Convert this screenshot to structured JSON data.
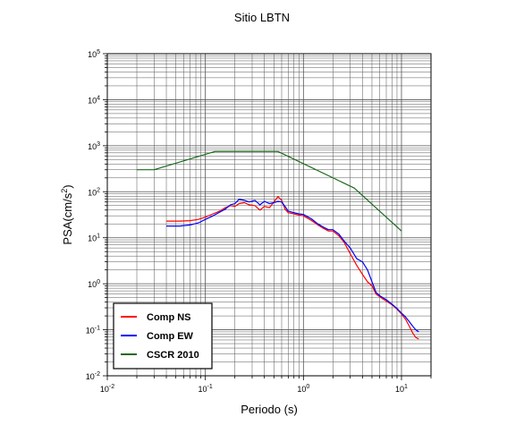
{
  "chart_data": {
    "type": "line",
    "title": "Sitio LBTN",
    "xlabel": "Periodo (s)",
    "ylabel_base": "PSA(cm/s",
    "ylabel_sup": "2",
    "ylabel_close": ")",
    "xscale": "log",
    "yscale": "log",
    "xlim": [
      0.01,
      20
    ],
    "ylim": [
      0.01,
      100000
    ],
    "grid": true,
    "legend_position": "bottom-left",
    "x_tick_labels": [
      {
        "base": "10",
        "exp": "-2"
      },
      {
        "base": "10",
        "exp": "-1"
      },
      {
        "base": "10",
        "exp": "0"
      },
      {
        "base": "10",
        "exp": "1"
      }
    ],
    "y_tick_labels": [
      {
        "base": "10",
        "exp": "-2"
      },
      {
        "base": "10",
        "exp": "-1"
      },
      {
        "base": "10",
        "exp": "0"
      },
      {
        "base": "10",
        "exp": "1"
      },
      {
        "base": "10",
        "exp": "2"
      },
      {
        "base": "10",
        "exp": "3"
      },
      {
        "base": "10",
        "exp": "4"
      },
      {
        "base": "10",
        "exp": "5"
      }
    ],
    "series": [
      {
        "name": "Comp NS",
        "color": "#ff0000",
        "points": [
          [
            0.04,
            23
          ],
          [
            0.055,
            23
          ],
          [
            0.07,
            23.5
          ],
          [
            0.085,
            25
          ],
          [
            0.1,
            28
          ],
          [
            0.12,
            33
          ],
          [
            0.14,
            38
          ],
          [
            0.16,
            45
          ],
          [
            0.18,
            50
          ],
          [
            0.2,
            48
          ],
          [
            0.22,
            55
          ],
          [
            0.25,
            58
          ],
          [
            0.28,
            52
          ],
          [
            0.32,
            50
          ],
          [
            0.36,
            40
          ],
          [
            0.4,
            48
          ],
          [
            0.45,
            45
          ],
          [
            0.5,
            60
          ],
          [
            0.55,
            78
          ],
          [
            0.6,
            65
          ],
          [
            0.65,
            42
          ],
          [
            0.7,
            35
          ],
          [
            0.8,
            33
          ],
          [
            0.9,
            31
          ],
          [
            1.0,
            30
          ],
          [
            1.2,
            24
          ],
          [
            1.4,
            19
          ],
          [
            1.6,
            16
          ],
          [
            1.8,
            14
          ],
          [
            2.0,
            14
          ],
          [
            2.3,
            11
          ],
          [
            2.6,
            8
          ],
          [
            3.0,
            4.5
          ],
          [
            3.5,
            2.5
          ],
          [
            4.0,
            1.6
          ],
          [
            4.5,
            1.1
          ],
          [
            5.0,
            0.9
          ],
          [
            5.5,
            0.6
          ],
          [
            6.0,
            0.52
          ],
          [
            7.0,
            0.42
          ],
          [
            8.0,
            0.35
          ],
          [
            9.0,
            0.28
          ],
          [
            10.0,
            0.22
          ],
          [
            11.0,
            0.17
          ],
          [
            12.0,
            0.12
          ],
          [
            13.0,
            0.085
          ],
          [
            14.0,
            0.068
          ],
          [
            15.0,
            0.063
          ]
        ]
      },
      {
        "name": "Comp EW",
        "color": "#0000ff",
        "points": [
          [
            0.04,
            18
          ],
          [
            0.055,
            18
          ],
          [
            0.07,
            19
          ],
          [
            0.085,
            21
          ],
          [
            0.1,
            25
          ],
          [
            0.12,
            30
          ],
          [
            0.14,
            36
          ],
          [
            0.16,
            42
          ],
          [
            0.18,
            52
          ],
          [
            0.2,
            55
          ],
          [
            0.22,
            68
          ],
          [
            0.25,
            65
          ],
          [
            0.28,
            60
          ],
          [
            0.32,
            65
          ],
          [
            0.36,
            52
          ],
          [
            0.4,
            62
          ],
          [
            0.45,
            55
          ],
          [
            0.5,
            58
          ],
          [
            0.55,
            62
          ],
          [
            0.6,
            60
          ],
          [
            0.65,
            48
          ],
          [
            0.7,
            38
          ],
          [
            0.8,
            35
          ],
          [
            0.9,
            33
          ],
          [
            1.0,
            32
          ],
          [
            1.2,
            26
          ],
          [
            1.4,
            20
          ],
          [
            1.6,
            17
          ],
          [
            1.8,
            15
          ],
          [
            2.0,
            15
          ],
          [
            2.3,
            12
          ],
          [
            2.6,
            8.5
          ],
          [
            3.0,
            6
          ],
          [
            3.5,
            3.5
          ],
          [
            4.0,
            3.0
          ],
          [
            4.5,
            2.0
          ],
          [
            5.0,
            1.1
          ],
          [
            5.5,
            0.65
          ],
          [
            6.0,
            0.55
          ],
          [
            7.0,
            0.45
          ],
          [
            8.0,
            0.36
          ],
          [
            9.0,
            0.29
          ],
          [
            10.0,
            0.23
          ],
          [
            11.0,
            0.19
          ],
          [
            12.0,
            0.15
          ],
          [
            13.0,
            0.12
          ],
          [
            14.0,
            0.1
          ],
          [
            15.0,
            0.09
          ]
        ]
      },
      {
        "name": "CSCR 2010",
        "color": "#1a6b1a",
        "points": [
          [
            0.02,
            300
          ],
          [
            0.03,
            300
          ],
          [
            0.125,
            750
          ],
          [
            0.55,
            750
          ],
          [
            3.3,
            120
          ],
          [
            10.0,
            14
          ]
        ]
      }
    ]
  }
}
